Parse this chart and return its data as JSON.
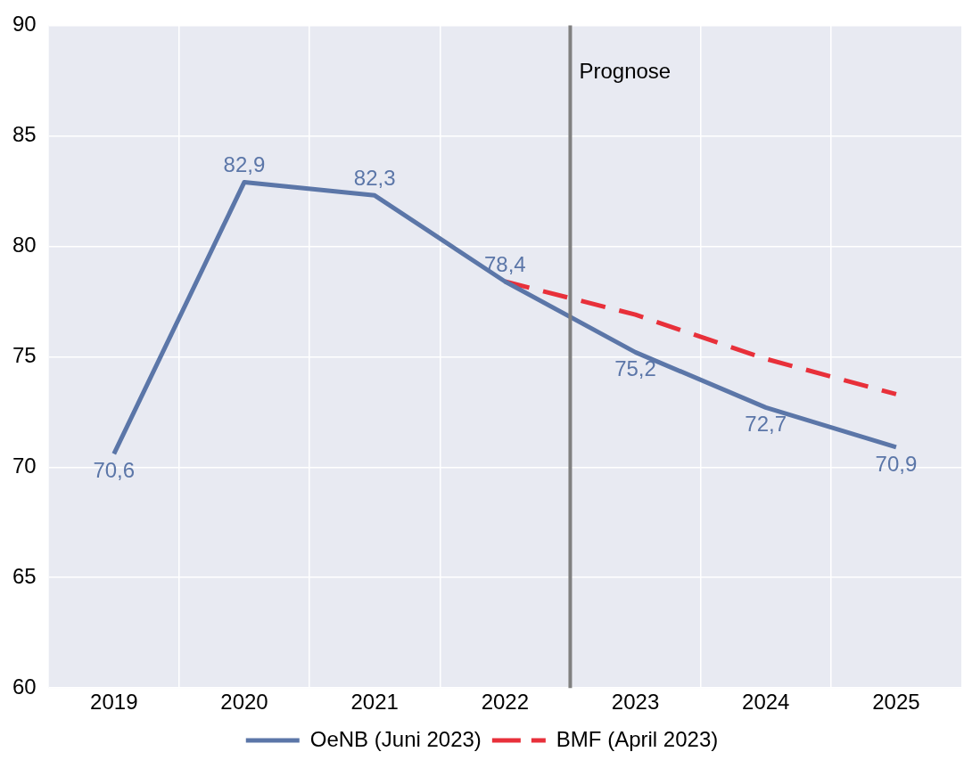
{
  "chart_data": {
    "type": "line",
    "x": [
      2019,
      2020,
      2021,
      2022,
      2023,
      2024,
      2025
    ],
    "xlim": [
      2018.5,
      2025.5
    ],
    "xticks": [
      {
        "value": 2018.5,
        "label": null
      },
      2019,
      {
        "value": 2019.5,
        "label": null
      },
      2020,
      {
        "value": 2020.5,
        "label": null
      },
      2021,
      {
        "value": 2021.5,
        "label": null
      },
      2022,
      {
        "value": 2022.5,
        "label": null
      },
      2023,
      {
        "value": 2023.5,
        "label": null
      },
      2024,
      {
        "value": 2024.5,
        "label": null
      },
      2025,
      {
        "value": 2025.5,
        "label": null
      }
    ],
    "ylim": [
      60,
      90
    ],
    "yticks": [
      60,
      65,
      70,
      75,
      80,
      85,
      90
    ],
    "series": [
      {
        "name": "OeNB (Juni 2023)",
        "color": "#5b76a8",
        "line_style": "solid",
        "values": [
          70.6,
          82.9,
          82.3,
          78.4,
          75.2,
          72.7,
          70.9
        ],
        "value_labels": [
          "70,6",
          "82,9",
          "82,3",
          "78,4",
          "75,2",
          "72,7",
          "70,9"
        ]
      },
      {
        "name": "BMF (April 2023)",
        "color": "#e8303a",
        "line_style": "dashed",
        "values": [
          null,
          null,
          null,
          78.4,
          76.9,
          74.9,
          73.3
        ]
      }
    ],
    "ref_lines": [
      {
        "axis": "x",
        "value": 2022.5,
        "label": "Prognose",
        "color": "#808080"
      }
    ],
    "grid": true,
    "legend": "bottom",
    "marker": "none"
  }
}
